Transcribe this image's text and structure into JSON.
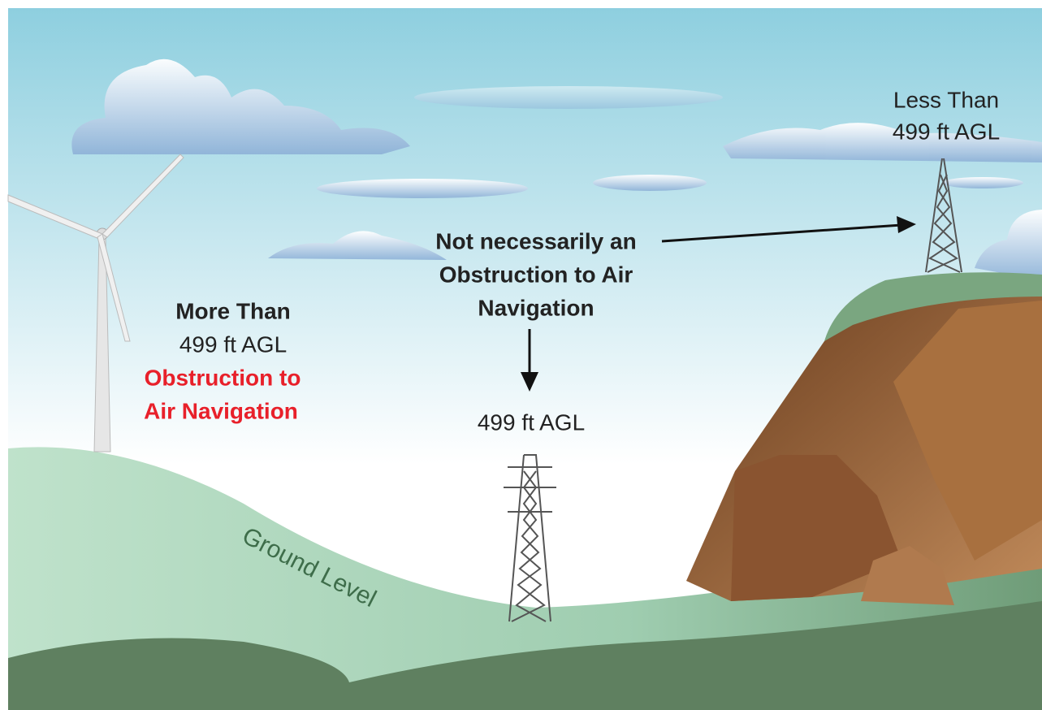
{
  "left_label": [
    "More Than",
    "499 ft AGL",
    "Obstruction to",
    "Air Navigation"
  ],
  "center_label": [
    "Not necessarily an",
    "Obstruction to Air",
    "Navigation"
  ],
  "center_tower_label": "499 ft AGL",
  "right_label": [
    "Less Than",
    "499 ft AGL"
  ],
  "ground_label": "Ground Level"
}
